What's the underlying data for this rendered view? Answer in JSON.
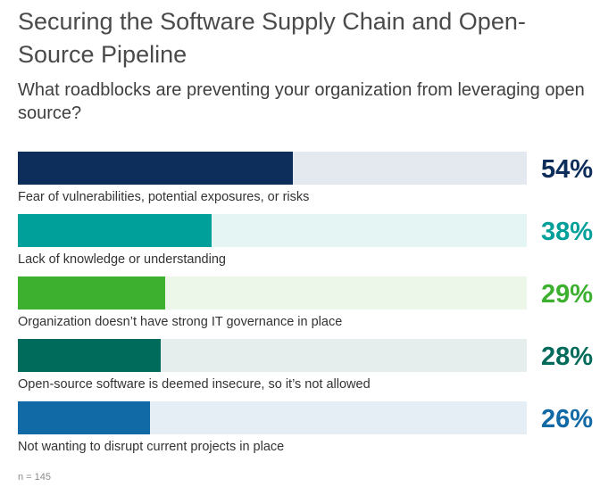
{
  "chart_data": {
    "type": "bar",
    "orientation": "horizontal",
    "title": "Securing the Software Supply Chain and Open-Source Pipeline",
    "subtitle": "What roadblocks are preventing your organization from leveraging open source?",
    "xlim": [
      0,
      100
    ],
    "unit": "%",
    "sample_note": "n = 145",
    "bars": [
      {
        "label": "Fear of vulnerabilities, potential exposures, or risks",
        "value": 54,
        "value_label": "54%",
        "color": "#0d2d5b",
        "track_color": "#e3e9ef"
      },
      {
        "label": "Lack of knowledge or understanding",
        "value": 38,
        "value_label": "38%",
        "color": "#00a09a",
        "track_color": "#e5f5f4"
      },
      {
        "label": "Organization doesn’t have strong IT governance in place",
        "value": 29,
        "value_label": "29%",
        "color": "#3db12f",
        "track_color": "#ecf6e9"
      },
      {
        "label": "Open-source software is deemed insecure, so it’s not allowed",
        "value": 28,
        "value_label": "28%",
        "color": "#006a5b",
        "track_color": "#e5eeec"
      },
      {
        "label": "Not wanting to disrupt current projects in place",
        "value": 26,
        "value_label": "26%",
        "color": "#1169a5",
        "track_color": "#e6eef5"
      }
    ]
  }
}
